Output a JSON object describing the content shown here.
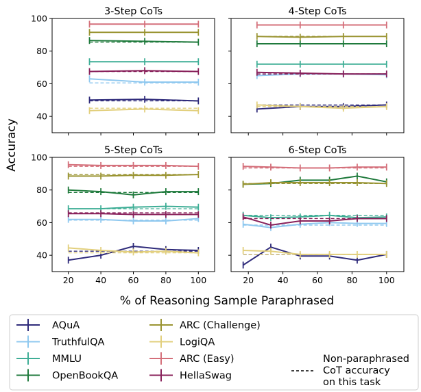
{
  "figure": {
    "ylabel": "Accuracy",
    "xlabel": "% of Reasoning Sample Paraphrased",
    "legend": {
      "items": [
        {
          "label": "AQuA",
          "color": "#2e2a7a"
        },
        {
          "label": "TruthfulQA",
          "color": "#8fc8ef"
        },
        {
          "label": "MMLU",
          "color": "#3fae96"
        },
        {
          "label": "OpenBookQA",
          "color": "#1f7a3c"
        },
        {
          "label": "ARC (Challenge)",
          "color": "#9a9432"
        },
        {
          "label": "LogiQA",
          "color": "#e2cf7c"
        },
        {
          "label": "ARC (Easy)",
          "color": "#d46f7a"
        },
        {
          "label": "HellaSwag",
          "color": "#88205a"
        }
      ],
      "dashed_label": [
        "Non-paraphrased",
        "CoT accuracy",
        "on this task"
      ]
    }
  },
  "chart_data": [
    {
      "type": "line",
      "title": "3-Step CoTs",
      "ylim": [
        30,
        100
      ],
      "xlim": [
        10,
        110
      ],
      "yticks": [
        40,
        60,
        80,
        100
      ],
      "xticks": [
        20,
        40,
        60,
        80,
        100
      ],
      "show_yticklabels": true,
      "show_xticklabels": false,
      "series": [
        {
          "name": "AQuA",
          "color": "#2e2a7a",
          "x": [
            33,
            67,
            100
          ],
          "values": [
            50,
            50.5,
            49.5
          ],
          "baseline": 49.5
        },
        {
          "name": "TruthfulQA",
          "color": "#8fc8ef",
          "x": [
            33,
            67,
            100
          ],
          "values": [
            63,
            61,
            61
          ],
          "baseline": 60.5
        },
        {
          "name": "MMLU",
          "color": "#3fae96",
          "x": [
            33,
            67,
            100
          ],
          "values": [
            73.5,
            73.5,
            73.5
          ],
          "baseline": 73.5
        },
        {
          "name": "OpenBookQA",
          "color": "#1f7a3c",
          "x": [
            33,
            67,
            100
          ],
          "values": [
            86.5,
            86,
            85.5
          ],
          "baseline": 85.5
        },
        {
          "name": "ARC (Challenge)",
          "color": "#9a9432",
          "x": [
            33,
            67,
            100
          ],
          "values": [
            91.5,
            91.5,
            91.5
          ],
          "baseline": 91.5
        },
        {
          "name": "LogiQA",
          "color": "#e2cf7c",
          "x": [
            33,
            67,
            100
          ],
          "values": [
            43.5,
            44.5,
            43.5
          ],
          "baseline": 45
        },
        {
          "name": "ARC (Easy)",
          "color": "#d46f7a",
          "x": [
            33,
            67,
            100
          ],
          "values": [
            96.5,
            96.5,
            96.5
          ],
          "baseline": 96.5
        },
        {
          "name": "HellaSwag",
          "color": "#88205a",
          "x": [
            33,
            67,
            100
          ],
          "values": [
            67.5,
            68,
            67.5
          ],
          "baseline": 67.5
        }
      ]
    },
    {
      "type": "line",
      "title": "4-Step CoTs",
      "ylim": [
        30,
        100
      ],
      "xlim": [
        10,
        110
      ],
      "yticks": [
        40,
        60,
        80,
        100
      ],
      "xticks": [
        20,
        40,
        60,
        80,
        100
      ],
      "show_yticklabels": false,
      "show_xticklabels": false,
      "series": [
        {
          "name": "AQuA",
          "color": "#2e2a7a",
          "x": [
            25,
            50,
            75,
            100
          ],
          "values": [
            44.5,
            46,
            46,
            47
          ],
          "baseline": 47
        },
        {
          "name": "TruthfulQA",
          "color": "#8fc8ef",
          "x": [
            25,
            50,
            75,
            100
          ],
          "values": [
            65,
            66,
            66,
            65.5
          ],
          "baseline": 66
        },
        {
          "name": "MMLU",
          "color": "#3fae96",
          "x": [
            25,
            50,
            75,
            100
          ],
          "values": [
            72,
            72,
            72,
            72
          ],
          "baseline": 72
        },
        {
          "name": "OpenBookQA",
          "color": "#1f7a3c",
          "x": [
            25,
            50,
            75,
            100
          ],
          "values": [
            84.5,
            84.5,
            84.5,
            84.5
          ],
          "baseline": 84.5
        },
        {
          "name": "ARC (Challenge)",
          "color": "#9a9432",
          "x": [
            25,
            50,
            75,
            100
          ],
          "values": [
            89,
            88.5,
            89,
            89
          ],
          "baseline": 89
        },
        {
          "name": "LogiQA",
          "color": "#e2cf7c",
          "x": [
            25,
            50,
            75,
            100
          ],
          "values": [
            47,
            46,
            45,
            46
          ],
          "baseline": 46
        },
        {
          "name": "ARC (Easy)",
          "color": "#d46f7a",
          "x": [
            25,
            50,
            75,
            100
          ],
          "values": [
            96,
            96,
            96,
            96
          ],
          "baseline": 96
        },
        {
          "name": "HellaSwag",
          "color": "#88205a",
          "x": [
            25,
            50,
            75,
            100
          ],
          "values": [
            67,
            66.5,
            66,
            66
          ],
          "baseline": 66
        }
      ]
    },
    {
      "type": "line",
      "title": "5-Step CoTs",
      "ylim": [
        30,
        100
      ],
      "xlim": [
        10,
        110
      ],
      "yticks": [
        40,
        60,
        80,
        100
      ],
      "xticks": [
        20,
        40,
        60,
        80,
        100
      ],
      "show_yticklabels": true,
      "show_xticklabels": true,
      "series": [
        {
          "name": "AQuA",
          "color": "#2e2a7a",
          "x": [
            20,
            40,
            60,
            80,
            100
          ],
          "values": [
            37,
            40,
            45.5,
            43.5,
            43
          ],
          "baseline": 42.5
        },
        {
          "name": "TruthfulQA",
          "color": "#8fc8ef",
          "x": [
            20,
            40,
            60,
            80,
            100
          ],
          "values": [
            62,
            62,
            61,
            61,
            62.5
          ],
          "baseline": 61.5
        },
        {
          "name": "MMLU",
          "color": "#3fae96",
          "x": [
            20,
            40,
            60,
            80,
            100
          ],
          "values": [
            68.5,
            68.5,
            69.5,
            70,
            69.5
          ],
          "baseline": 68.5
        },
        {
          "name": "OpenBookQA",
          "color": "#1f7a3c",
          "x": [
            20,
            40,
            60,
            80,
            100
          ],
          "values": [
            80,
            79,
            77,
            79,
            79
          ],
          "baseline": 78.5
        },
        {
          "name": "ARC (Challenge)",
          "color": "#9a9432",
          "x": [
            20,
            40,
            60,
            80,
            100
          ],
          "values": [
            88.5,
            88.5,
            89,
            89,
            89.5
          ],
          "baseline": 89.5
        },
        {
          "name": "LogiQA",
          "color": "#e2cf7c",
          "x": [
            20,
            40,
            60,
            80,
            100
          ],
          "values": [
            44.5,
            43,
            42,
            42.5,
            41.5
          ],
          "baseline": 41.5
        },
        {
          "name": "ARC (Easy)",
          "color": "#d46f7a",
          "x": [
            20,
            40,
            60,
            80,
            100
          ],
          "values": [
            95.5,
            95,
            95,
            95,
            94.5
          ],
          "baseline": 94.5
        },
        {
          "name": "HellaSwag",
          "color": "#88205a",
          "x": [
            20,
            40,
            60,
            80,
            100
          ],
          "values": [
            65.5,
            65.5,
            65,
            65,
            65
          ],
          "baseline": 66
        }
      ]
    },
    {
      "type": "line",
      "title": "6-Step CoTs",
      "ylim": [
        30,
        100
      ],
      "xlim": [
        10,
        110
      ],
      "yticks": [
        40,
        60,
        80,
        100
      ],
      "xticks": [
        20,
        40,
        60,
        80,
        100
      ],
      "show_yticklabels": false,
      "show_xticklabels": true,
      "series": [
        {
          "name": "AQuA",
          "color": "#2e2a7a",
          "x": [
            17,
            33,
            50,
            67,
            83,
            100
          ],
          "values": [
            34,
            45,
            39.5,
            39.5,
            37,
            40.5
          ],
          "baseline": 40.5
        },
        {
          "name": "TruthfulQA",
          "color": "#8fc8ef",
          "x": [
            17,
            33,
            50,
            67,
            83,
            100
          ],
          "values": [
            59,
            57,
            59,
            60,
            59.5,
            59.5
          ],
          "baseline": 58.5
        },
        {
          "name": "MMLU",
          "color": "#3fae96",
          "x": [
            17,
            33,
            50,
            67,
            83,
            100
          ],
          "values": [
            64.5,
            63,
            63.5,
            64.5,
            63,
            63.5
          ],
          "baseline": 64.5
        },
        {
          "name": "OpenBookQA",
          "color": "#1f7a3c",
          "x": [
            17,
            33,
            50,
            67,
            83,
            100
          ],
          "values": [
            83.5,
            84,
            86,
            86,
            88.5,
            85
          ],
          "baseline": 84
        },
        {
          "name": "ARC (Challenge)",
          "color": "#9a9432",
          "x": [
            17,
            33,
            50,
            67,
            83,
            100
          ],
          "values": [
            83.5,
            84.5,
            84.5,
            84.5,
            84.5,
            84
          ],
          "baseline": 84
        },
        {
          "name": "LogiQA",
          "color": "#e2cf7c",
          "x": [
            17,
            33,
            50,
            67,
            83,
            100
          ],
          "values": [
            43,
            42.5,
            40.5,
            40.5,
            40.5,
            40.5
          ],
          "baseline": 40.5
        },
        {
          "name": "ARC (Easy)",
          "color": "#d46f7a",
          "x": [
            17,
            33,
            50,
            67,
            83,
            100
          ],
          "values": [
            94.5,
            94,
            93.5,
            93.5,
            94,
            94
          ],
          "baseline": 93.5
        },
        {
          "name": "HellaSwag",
          "color": "#88205a",
          "x": [
            17,
            33,
            50,
            67,
            83,
            100
          ],
          "values": [
            63.5,
            58.5,
            61,
            61,
            62.5,
            62.5
          ],
          "baseline": 62.5
        }
      ]
    }
  ]
}
